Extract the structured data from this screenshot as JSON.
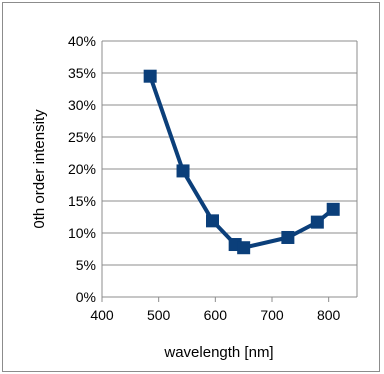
{
  "chart_data": {
    "type": "line",
    "title": "",
    "xlabel": "wavelength [nm]",
    "ylabel": "0th order intensity",
    "xlim": [
      400,
      850
    ],
    "ylim": [
      0,
      40
    ],
    "x_ticks": [
      "400",
      "500",
      "600",
      "700",
      "800"
    ],
    "y_ticks": [
      "0%",
      "5%",
      "10%",
      "15%",
      "20%",
      "25%",
      "30%",
      "35%",
      "40%"
    ],
    "grid": "horizontal",
    "legend": "none",
    "series": [
      {
        "x": [
          485,
          543,
          595,
          635,
          650,
          728,
          780,
          808
        ],
        "y": [
          34.5,
          19.7,
          11.9,
          8.2,
          7.7,
          9.3,
          11.7,
          13.7
        ],
        "color": "#0b3f7a",
        "marker": "square"
      }
    ]
  }
}
